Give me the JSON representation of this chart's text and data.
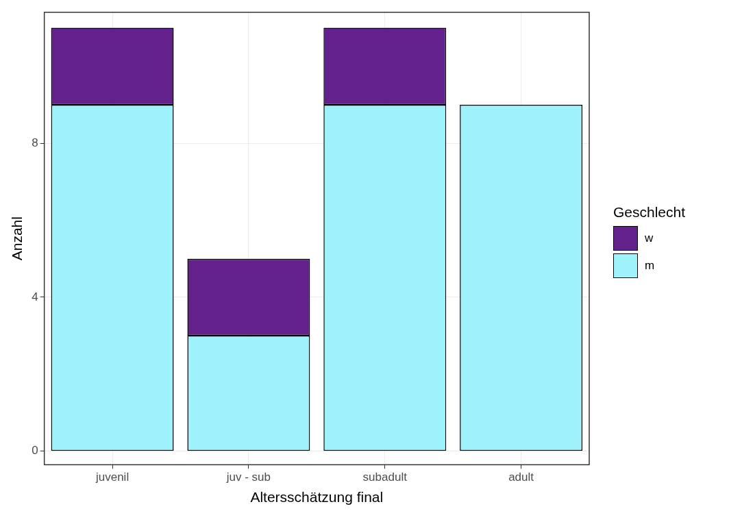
{
  "chart_data": {
    "type": "bar",
    "xlabel": "Altersschätzung final",
    "ylabel": "Anzahl",
    "legend_title": "Geschlecht",
    "categories": [
      "juvenil",
      "juv - sub",
      "subadult",
      "adult"
    ],
    "series": [
      {
        "name": "m",
        "color": "#9ef2fc",
        "values": [
          9,
          3,
          9,
          9
        ]
      },
      {
        "name": "w",
        "color": "#63218b",
        "values": [
          2,
          2,
          2,
          0
        ]
      }
    ],
    "stacked": true,
    "ylim": [
      -0.35,
      11.4
    ],
    "yticks": [
      0,
      4,
      8
    ],
    "grid": true,
    "legend": "right"
  }
}
